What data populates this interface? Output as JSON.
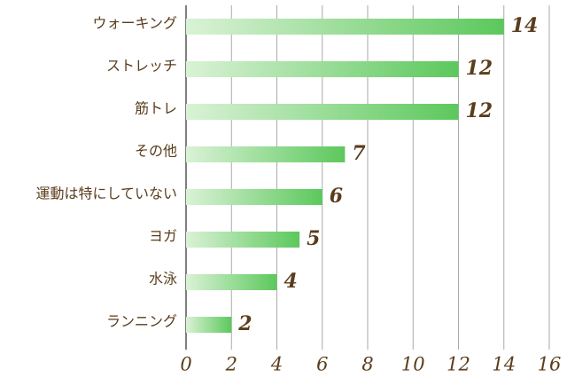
{
  "chart_data": {
    "type": "barh",
    "categories": [
      "ウォーキング",
      "ストレッチ",
      "筋トレ",
      "その他",
      "運動は特にしていない",
      "ヨガ",
      "水泳",
      "ランニング"
    ],
    "values": [
      14,
      12,
      12,
      7,
      6,
      5,
      4,
      2
    ],
    "color": "#5cc85c",
    "xlim": [
      0,
      16
    ],
    "xticks": [
      0,
      2,
      4,
      6,
      8,
      10,
      12,
      14,
      16
    ],
    "grid": true
  }
}
